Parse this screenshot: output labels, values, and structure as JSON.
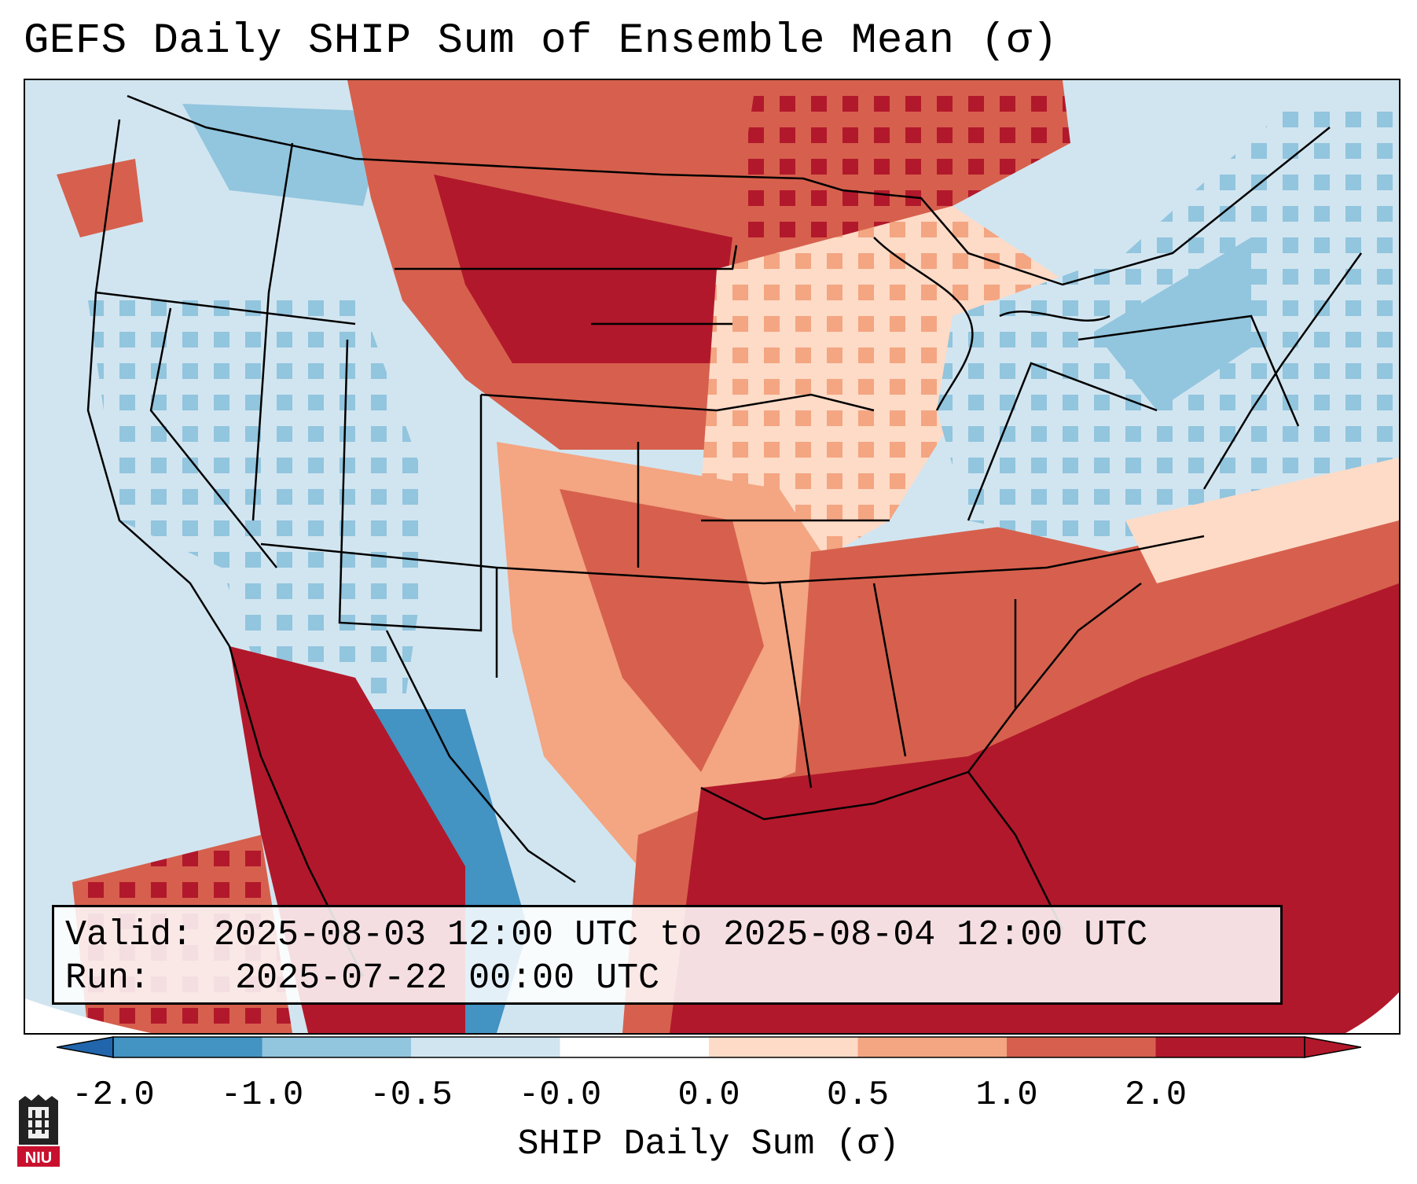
{
  "title": "GEFS Daily SHIP Sum of Ensemble Mean (σ)",
  "info": {
    "valid_label": "Valid:",
    "valid_text": "2025-08-03 12:00 UTC to 2025-08-04 12:00 UTC",
    "run_label": "Run:",
    "run_text": "2025-07-22 00:00 UTC"
  },
  "colorbar": {
    "label": "SHIP Daily Sum (σ)",
    "ticks": [
      "-2.0",
      "-1.0",
      "-0.5",
      "-0.0",
      "0.0",
      "0.5",
      "1.0",
      "2.0"
    ],
    "colors": [
      "#4393c3",
      "#92c5de",
      "#d1e5f0",
      "#ffffff",
      "#fddbc7",
      "#f4a582",
      "#d6604d",
      "#b2182b"
    ],
    "under_color": "#2166ac",
    "over_color": "#b2182b"
  },
  "logo": {
    "text": "NIU"
  },
  "regions": {
    "blue_west": "-0.5 to -1.0 across the western US",
    "red_plains": "1.0 to 2.0 over Montana, Wyoming, Dakotas",
    "red_southeast": "over 2.0 across Gulf of Mexico and Florida",
    "blue_northeast": "-0.5 to -1.0 over the Northeast"
  }
}
